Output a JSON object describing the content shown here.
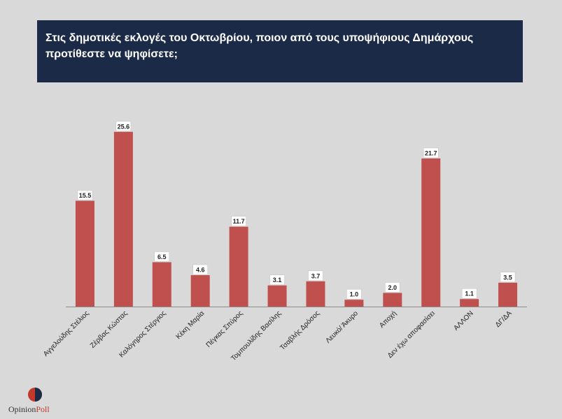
{
  "chart_data": {
    "type": "bar",
    "title": "Στις δημοτικές εκλογές του Οκτωβρίου, ποιον από τους υποψήφιους Δημάρχους προτίθεστε να ψηφίσετε;",
    "categories": [
      "Αγγελούδης Στέλιος",
      "Ζέρβας Κώστας",
      "Καλόγηρος Στέργιος",
      "Κέκη Μαρία",
      "Πέγκας Σπύρος",
      "Τομπουλίδης Βασίλης",
      "Τσαβλής Δρόσος",
      "Λευκό/ Άκυρο",
      "Αποχή",
      "Δεν έχω αποφασίσει",
      "ΑΛΛΟΝ",
      "ΔΓ/ΔΑ"
    ],
    "values": [
      15.5,
      25.6,
      6.5,
      4.6,
      11.7,
      3.1,
      3.7,
      1.0,
      2.0,
      21.7,
      1.1,
      3.5
    ],
    "value_labels": [
      "15.5",
      "25.6",
      "6.5",
      "4.6",
      "11.7",
      "3.1",
      "3.7",
      "1.0",
      "2.0",
      "21.7",
      "1.1",
      "3.5"
    ],
    "bar_color": "#c0504d",
    "ylim": [
      0,
      26.5
    ],
    "xlabel": "",
    "ylabel": ""
  },
  "branding": {
    "opinion": "Opinion",
    "poll": "Poll"
  }
}
